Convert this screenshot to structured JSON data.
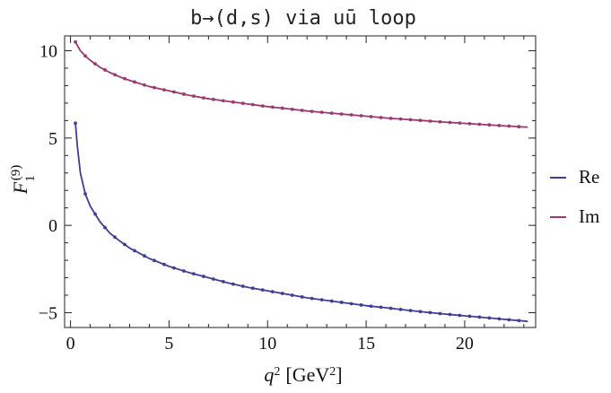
{
  "chart_data": {
    "type": "line",
    "title": "b→(d,s) via uū loop",
    "xlabel": {
      "base": "q",
      "sup": "2",
      "unit_pre": "[GeV",
      "unit_sup": "2",
      "unit_post": "]"
    },
    "ylabel": {
      "base": "F",
      "sub": "1",
      "sup": "(9)"
    },
    "xlim": [
      -0.3,
      23.6
    ],
    "ylim": [
      -5.85,
      10.85
    ],
    "x_ticks": [
      0,
      5,
      10,
      15,
      20
    ],
    "y_ticks": [
      -5,
      0,
      5,
      10
    ],
    "x_tick_labels": [
      "0",
      "5",
      "10",
      "15",
      "20"
    ],
    "y_tick_labels": [
      "−5",
      "0",
      "5",
      "10"
    ],
    "grid": false,
    "legend_position": "right",
    "series": [
      {
        "name": "Re",
        "color": "#3d3f96",
        "x": [
          0.25,
          0.35,
          0.5,
          0.75,
          1.0,
          1.5,
          2.0,
          2.5,
          3.0,
          4.0,
          5.0,
          6.0,
          7.0,
          8.0,
          9.0,
          10.0,
          11.0,
          12.0,
          13.0,
          14.0,
          15.0,
          16.0,
          17.0,
          18.0,
          19.0,
          20.0,
          21.0,
          22.0,
          23.2
        ],
        "y": [
          5.85,
          4.5,
          3.0,
          1.8,
          1.1,
          0.2,
          -0.45,
          -0.9,
          -1.3,
          -1.9,
          -2.35,
          -2.7,
          -3.0,
          -3.3,
          -3.55,
          -3.75,
          -3.95,
          -4.15,
          -4.3,
          -4.45,
          -4.6,
          -4.72,
          -4.85,
          -4.97,
          -5.08,
          -5.18,
          -5.28,
          -5.38,
          -5.5
        ]
      },
      {
        "name": "Im",
        "color": "#9b3a72",
        "x": [
          0.25,
          0.5,
          0.75,
          1.0,
          1.5,
          2.0,
          2.5,
          3.0,
          4.0,
          5.0,
          6.0,
          7.0,
          8.0,
          9.0,
          10.0,
          11.0,
          12.0,
          13.0,
          14.0,
          15.0,
          16.0,
          17.0,
          18.0,
          19.0,
          20.0,
          21.0,
          22.0,
          23.2
        ],
        "y": [
          10.5,
          10.0,
          9.7,
          9.45,
          9.05,
          8.75,
          8.5,
          8.3,
          7.95,
          7.7,
          7.45,
          7.25,
          7.1,
          6.95,
          6.8,
          6.68,
          6.55,
          6.45,
          6.35,
          6.25,
          6.15,
          6.07,
          5.99,
          5.91,
          5.84,
          5.77,
          5.7,
          5.62
        ]
      }
    ]
  }
}
